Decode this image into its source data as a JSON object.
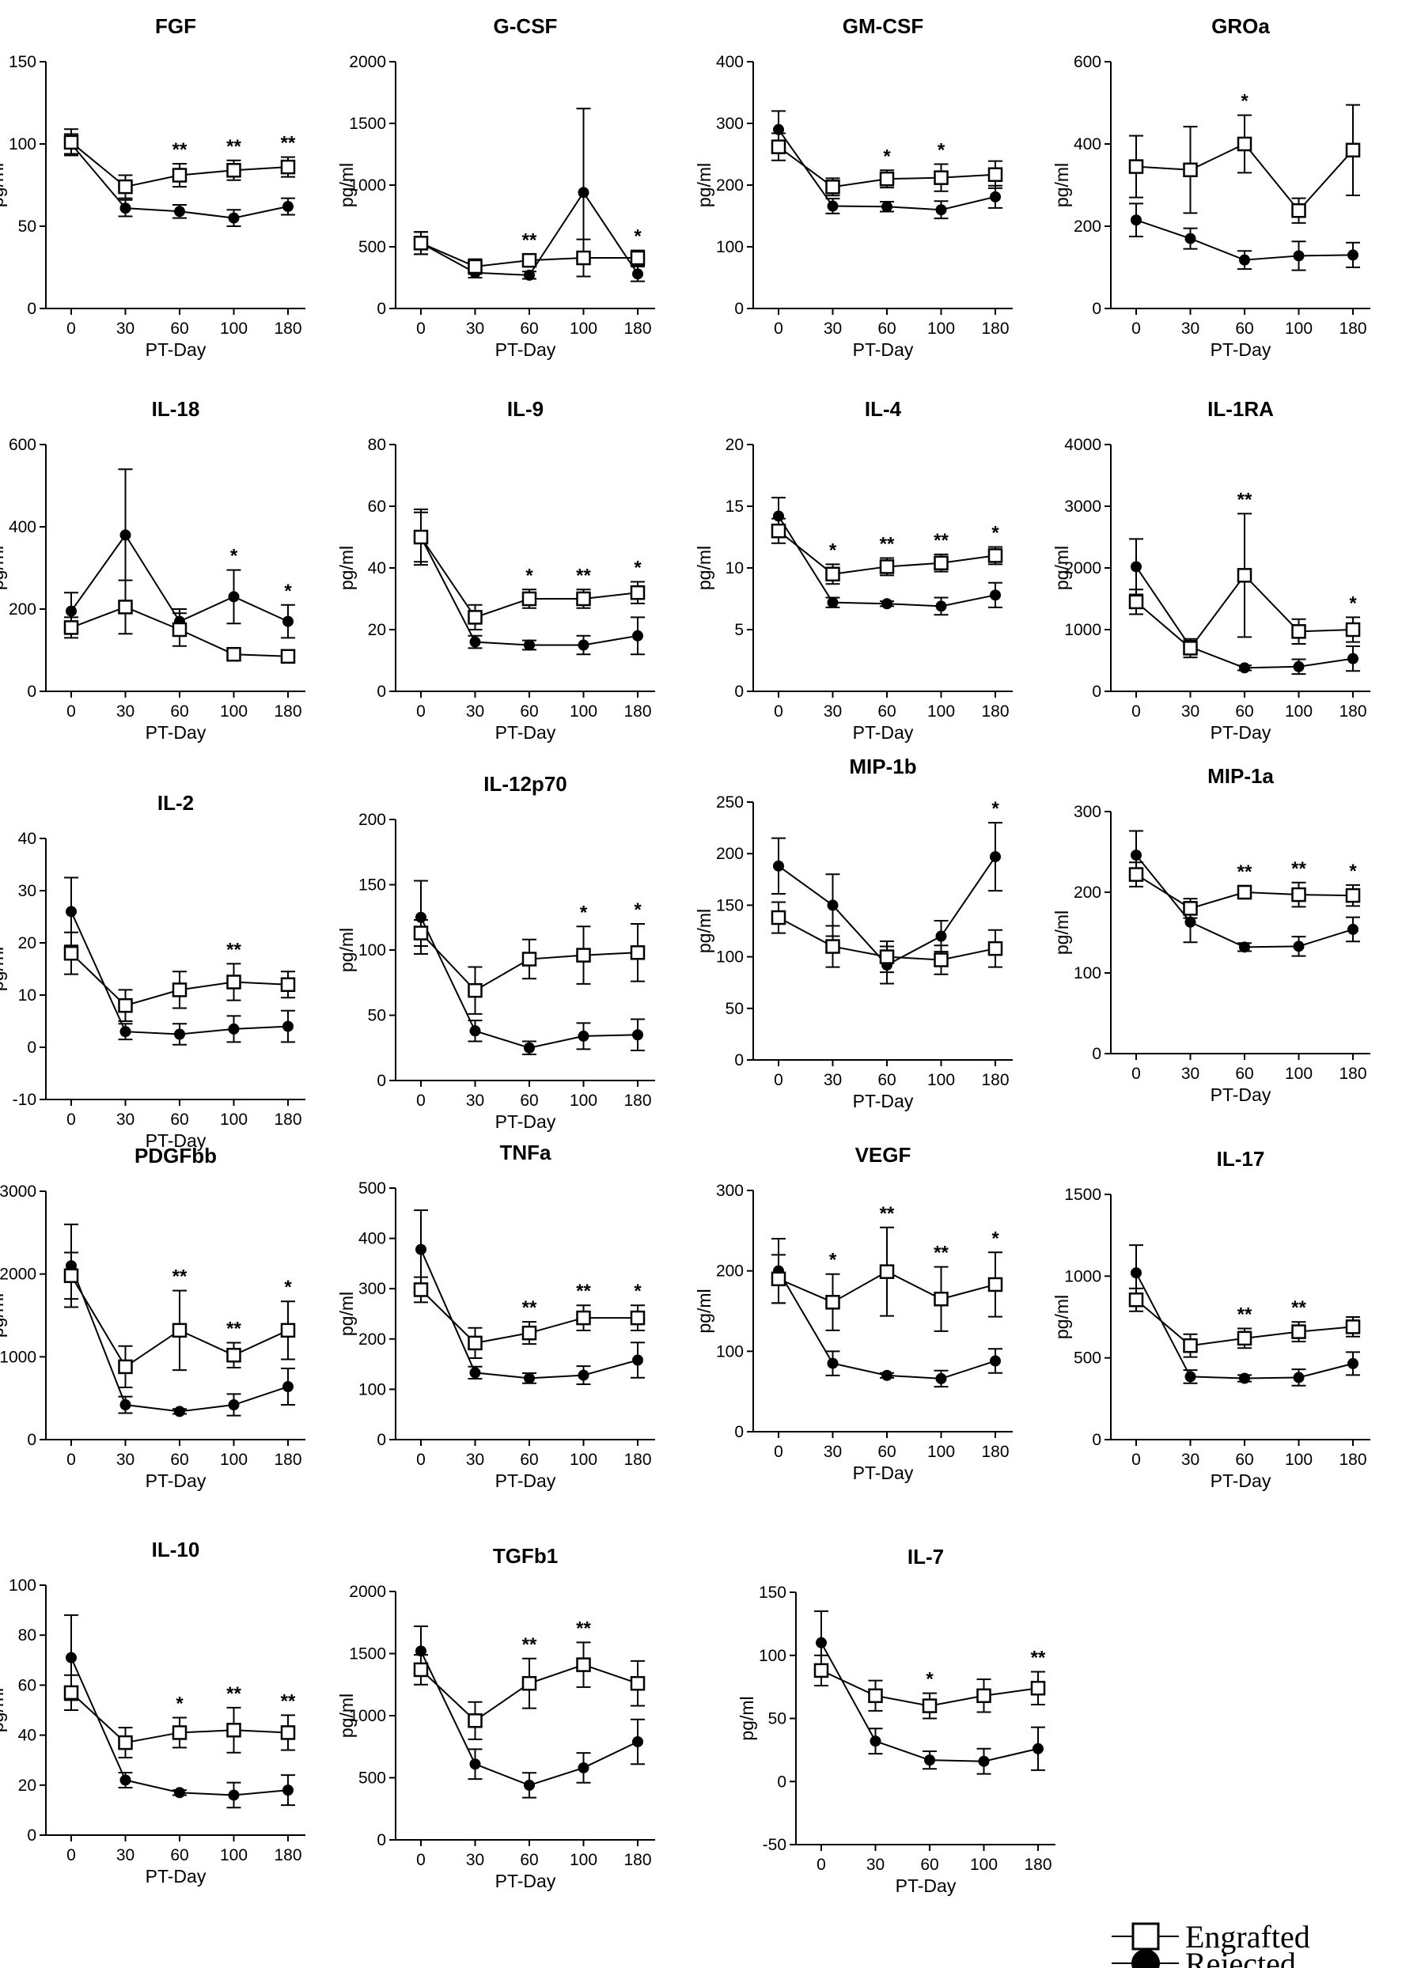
{
  "legend": {
    "engrafted": "Engrafted",
    "rejected": "Rejected"
  },
  "chart_data": [
    {
      "type": "line",
      "title": "FGF",
      "xlabel": "PT-Day",
      "ylabel": "pg/ml",
      "categories": [
        "0",
        "30",
        "60",
        "100",
        "180"
      ],
      "ylim": [
        0,
        150
      ],
      "yticks": [
        "0",
        "50",
        "100",
        "150"
      ],
      "series": [
        {
          "name": "Engrafted",
          "values": [
            101,
            74,
            81,
            84,
            86
          ],
          "errors": [
            8,
            7,
            7,
            6,
            6
          ]
        },
        {
          "name": "Rejected",
          "values": [
            100,
            61,
            59,
            55,
            62
          ],
          "errors": [
            6,
            5,
            4,
            5,
            5
          ]
        }
      ],
      "annotations": [
        "",
        "",
        "**",
        "**",
        "**"
      ]
    },
    {
      "type": "line",
      "title": "G-CSF",
      "xlabel": "PT-Day",
      "ylabel": "pg/ml",
      "categories": [
        "0",
        "30",
        "60",
        "100",
        "180"
      ],
      "ylim": [
        0,
        2000
      ],
      "yticks": [
        "0",
        "500",
        "1000",
        "1500",
        "2000"
      ],
      "series": [
        {
          "name": "Engrafted",
          "values": [
            530,
            340,
            390,
            410,
            410
          ],
          "errors": [
            90,
            60,
            50,
            150,
            60
          ]
        },
        {
          "name": "Rejected",
          "values": [
            530,
            290,
            270,
            940,
            280
          ],
          "errors": [
            90,
            40,
            30,
            680,
            60
          ]
        }
      ],
      "annotations": [
        "",
        "",
        "**",
        "",
        "*"
      ]
    },
    {
      "type": "line",
      "title": "GM-CSF",
      "xlabel": "PT-Day",
      "ylabel": "pg/ml",
      "categories": [
        "0",
        "30",
        "60",
        "100",
        "180"
      ],
      "ylim": [
        0,
        400
      ],
      "yticks": [
        "0",
        "100",
        "200",
        "300",
        "400"
      ],
      "series": [
        {
          "name": "Engrafted",
          "values": [
            262,
            197,
            210,
            212,
            217
          ],
          "errors": [
            22,
            14,
            14,
            22,
            22
          ]
        },
        {
          "name": "Rejected",
          "values": [
            290,
            166,
            165,
            160,
            181
          ],
          "errors": [
            30,
            12,
            8,
            14,
            18
          ]
        }
      ],
      "annotations": [
        "",
        "",
        "*",
        "*",
        ""
      ]
    },
    {
      "type": "line",
      "title": "GROa",
      "xlabel": "PT-Day",
      "ylabel": "pg/ml",
      "categories": [
        "0",
        "30",
        "60",
        "100",
        "180"
      ],
      "ylim": [
        0,
        600
      ],
      "yticks": [
        "0",
        "200",
        "400",
        "600"
      ],
      "series": [
        {
          "name": "Engrafted",
          "values": [
            345,
            337,
            400,
            238,
            385
          ],
          "errors": [
            75,
            105,
            70,
            30,
            110
          ]
        },
        {
          "name": "Rejected",
          "values": [
            215,
            170,
            118,
            128,
            130
          ],
          "errors": [
            40,
            25,
            22,
            35,
            30
          ]
        }
      ],
      "annotations": [
        "",
        "",
        "*",
        "",
        ""
      ]
    },
    {
      "type": "line",
      "title": "IL-18",
      "xlabel": "PT-Day",
      "ylabel": "pg/ml",
      "categories": [
        "0",
        "30",
        "60",
        "100",
        "180"
      ],
      "ylim": [
        0,
        600
      ],
      "yticks": [
        "0",
        "200",
        "400",
        "600"
      ],
      "series": [
        {
          "name": "Engrafted",
          "values": [
            155,
            205,
            150,
            90,
            85
          ],
          "errors": [
            25,
            65,
            40,
            15,
            10
          ]
        },
        {
          "name": "Rejected",
          "values": [
            195,
            380,
            170,
            230,
            170
          ],
          "errors": [
            45,
            160,
            30,
            65,
            40
          ]
        }
      ],
      "annotations": [
        "",
        "",
        "",
        "*",
        "*"
      ]
    },
    {
      "type": "line",
      "title": "IL-9",
      "xlabel": "PT-Day",
      "ylabel": "pg/ml",
      "categories": [
        "0",
        "30",
        "60",
        "100",
        "180"
      ],
      "ylim": [
        0,
        80
      ],
      "yticks": [
        "0",
        "20",
        "40",
        "60",
        "80"
      ],
      "series": [
        {
          "name": "Engrafted",
          "values": [
            50,
            24,
            30,
            30,
            32
          ],
          "errors": [
            9,
            4,
            3,
            3,
            3.5
          ]
        },
        {
          "name": "Rejected",
          "values": [
            50,
            16,
            15,
            15,
            18
          ],
          "errors": [
            8,
            2,
            1.5,
            3,
            6
          ]
        }
      ],
      "annotations": [
        "",
        "",
        "*",
        "**",
        "*"
      ]
    },
    {
      "type": "line",
      "title": "IL-4",
      "xlabel": "PT-Day",
      "ylabel": "pg/ml",
      "categories": [
        "0",
        "30",
        "60",
        "100",
        "180"
      ],
      "ylim": [
        0,
        20
      ],
      "yticks": [
        "0",
        "5",
        "10",
        "15",
        "20"
      ],
      "series": [
        {
          "name": "Engrafted",
          "values": [
            13,
            9.5,
            10.1,
            10.4,
            11
          ],
          "errors": [
            1,
            0.8,
            0.7,
            0.7,
            0.7
          ]
        },
        {
          "name": "Rejected",
          "values": [
            14.2,
            7.2,
            7.1,
            6.9,
            7.8
          ],
          "errors": [
            1.5,
            0.4,
            0.2,
            0.7,
            1
          ]
        }
      ],
      "annotations": [
        "",
        "*",
        "**",
        "**",
        "*"
      ]
    },
    {
      "type": "line",
      "title": "IL-1RA",
      "xlabel": "PT-Day",
      "ylabel": "pg/ml",
      "categories": [
        "0",
        "30",
        "60",
        "100",
        "180"
      ],
      "ylim": [
        0,
        4000
      ],
      "yticks": [
        "0",
        "1000",
        "2000",
        "3000",
        "4000"
      ],
      "series": [
        {
          "name": "Engrafted",
          "values": [
            1450,
            700,
            1880,
            970,
            1000
          ],
          "errors": [
            200,
            150,
            1000,
            200,
            200
          ]
        },
        {
          "name": "Rejected",
          "values": [
            2020,
            720,
            380,
            400,
            530
          ],
          "errors": [
            450,
            100,
            40,
            120,
            200
          ]
        }
      ],
      "annotations": [
        "",
        "",
        "**",
        "",
        "*"
      ]
    },
    {
      "type": "line",
      "title": "IL-2",
      "xlabel": "PT-Day",
      "ylabel": "pg/ml",
      "categories": [
        "0",
        "30",
        "60",
        "100",
        "180"
      ],
      "ylim": [
        -10,
        40
      ],
      "yticks": [
        "-10",
        "0",
        "10",
        "20",
        "30",
        "40"
      ],
      "series": [
        {
          "name": "Engrafted",
          "values": [
            18,
            8,
            11,
            12.5,
            12
          ],
          "errors": [
            4,
            3,
            3.5,
            3.5,
            2.5
          ]
        },
        {
          "name": "Rejected",
          "values": [
            26,
            3,
            2.5,
            3.5,
            4
          ],
          "errors": [
            6.5,
            1.5,
            2,
            2.5,
            3
          ]
        }
      ],
      "annotations": [
        "",
        "",
        "",
        "**",
        ""
      ]
    },
    {
      "type": "line",
      "title": "IL-12p70",
      "xlabel": "PT-Day",
      "ylabel": "pg/ml",
      "categories": [
        "0",
        "30",
        "60",
        "100",
        "180"
      ],
      "ylim": [
        0,
        200
      ],
      "yticks": [
        "0",
        "50",
        "100",
        "150",
        "200"
      ],
      "series": [
        {
          "name": "Engrafted",
          "values": [
            113,
            69,
            93,
            96,
            98
          ],
          "errors": [
            10,
            18,
            15,
            22,
            22
          ]
        },
        {
          "name": "Rejected",
          "values": [
            125,
            38,
            25,
            34,
            35
          ],
          "errors": [
            28,
            8,
            5,
            10,
            12
          ]
        }
      ],
      "annotations": [
        "",
        "",
        "",
        "*",
        "*"
      ]
    },
    {
      "type": "line",
      "title": "MIP-1b",
      "xlabel": "PT-Day",
      "ylabel": "pg/ml",
      "categories": [
        "0",
        "30",
        "60",
        "100",
        "180"
      ],
      "ylim": [
        0,
        250
      ],
      "yticks": [
        "0",
        "50",
        "100",
        "150",
        "200",
        "250"
      ],
      "series": [
        {
          "name": "Engrafted",
          "values": [
            138,
            110,
            100,
            97,
            108
          ],
          "errors": [
            15,
            20,
            15,
            14,
            18
          ]
        },
        {
          "name": "Rejected",
          "values": [
            188,
            150,
            92,
            120,
            197
          ],
          "errors": [
            27,
            30,
            18,
            15,
            33
          ]
        }
      ],
      "annotations": [
        "",
        "",
        "",
        "",
        "*"
      ]
    },
    {
      "type": "line",
      "title": "MIP-1a",
      "xlabel": "PT-Day",
      "ylabel": "pg/ml",
      "categories": [
        "0",
        "30",
        "60",
        "100",
        "180"
      ],
      "ylim": [
        0,
        300
      ],
      "yticks": [
        "0",
        "100",
        "200",
        "300"
      ],
      "series": [
        {
          "name": "Engrafted",
          "values": [
            222,
            180,
            200,
            197,
            196
          ],
          "errors": [
            15,
            12,
            8,
            15,
            13
          ]
        },
        {
          "name": "Rejected",
          "values": [
            246,
            163,
            132,
            133,
            154
          ],
          "errors": [
            30,
            25,
            5,
            12,
            15
          ]
        }
      ],
      "annotations": [
        "",
        "",
        "**",
        "**",
        "*"
      ]
    },
    {
      "type": "line",
      "title": "PDGFbb",
      "xlabel": "PT-Day",
      "ylabel": "pg/ml",
      "categories": [
        "0",
        "30",
        "60",
        "100",
        "180"
      ],
      "ylim": [
        0,
        3000
      ],
      "yticks": [
        "0",
        "1000",
        "2000",
        "3000"
      ],
      "series": [
        {
          "name": "Engrafted",
          "values": [
            1980,
            880,
            1320,
            1020,
            1320
          ],
          "errors": [
            280,
            250,
            480,
            150,
            350
          ]
        },
        {
          "name": "Rejected",
          "values": [
            2100,
            420,
            340,
            420,
            640
          ],
          "errors": [
            500,
            100,
            30,
            130,
            220
          ]
        }
      ],
      "annotations": [
        "",
        "",
        "**",
        "**",
        "*"
      ]
    },
    {
      "type": "line",
      "title": "TNFa",
      "xlabel": "PT-Day",
      "ylabel": "pg/ml",
      "categories": [
        "0",
        "30",
        "60",
        "100",
        "180"
      ],
      "ylim": [
        0,
        500
      ],
      "yticks": [
        "0",
        "100",
        "200",
        "300",
        "400",
        "500"
      ],
      "series": [
        {
          "name": "Engrafted",
          "values": [
            298,
            192,
            212,
            242,
            242
          ],
          "errors": [
            25,
            30,
            22,
            25,
            25
          ]
        },
        {
          "name": "Rejected",
          "values": [
            378,
            133,
            122,
            128,
            158
          ],
          "errors": [
            78,
            12,
            10,
            18,
            35
          ]
        }
      ],
      "annotations": [
        "",
        "",
        "**",
        "**",
        "*"
      ]
    },
    {
      "type": "line",
      "title": "VEGF",
      "xlabel": "PT-Day",
      "ylabel": "pg/ml",
      "categories": [
        "0",
        "30",
        "60",
        "100",
        "180"
      ],
      "ylim": [
        0,
        300
      ],
      "yticks": [
        "0",
        "100",
        "200",
        "300"
      ],
      "series": [
        {
          "name": "Engrafted",
          "values": [
            190,
            161,
            199,
            165,
            183
          ],
          "errors": [
            30,
            35,
            55,
            40,
            40
          ]
        },
        {
          "name": "Rejected",
          "values": [
            200,
            85,
            70,
            66,
            88
          ],
          "errors": [
            40,
            15,
            3,
            10,
            15
          ]
        }
      ],
      "annotations": [
        "",
        "*",
        "**",
        "**",
        "*"
      ]
    },
    {
      "type": "line",
      "title": "IL-17",
      "xlabel": "PT-Day",
      "ylabel": "pg/ml",
      "categories": [
        "0",
        "30",
        "60",
        "100",
        "180"
      ],
      "ylim": [
        0,
        1500
      ],
      "yticks": [
        "0",
        "500",
        "1000",
        "1500"
      ],
      "series": [
        {
          "name": "Engrafted",
          "values": [
            855,
            575,
            620,
            660,
            690
          ],
          "errors": [
            70,
            70,
            60,
            60,
            60
          ]
        },
        {
          "name": "Rejected",
          "values": [
            1020,
            385,
            375,
            380,
            465
          ],
          "errors": [
            170,
            40,
            20,
            50,
            70
          ]
        }
      ],
      "annotations": [
        "",
        "",
        "**",
        "**",
        ""
      ]
    },
    {
      "type": "line",
      "title": "IL-10",
      "xlabel": "PT-Day",
      "ylabel": "pg/ml",
      "categories": [
        "0",
        "30",
        "60",
        "100",
        "180"
      ],
      "ylim": [
        0,
        100
      ],
      "yticks": [
        "0",
        "20",
        "40",
        "60",
        "80",
        "100"
      ],
      "series": [
        {
          "name": "Engrafted",
          "values": [
            57,
            37,
            41,
            42,
            41
          ],
          "errors": [
            7,
            6,
            6,
            9,
            7
          ]
        },
        {
          "name": "Rejected",
          "values": [
            71,
            22,
            17,
            16,
            18
          ],
          "errors": [
            17,
            3,
            1,
            5,
            6
          ]
        }
      ],
      "annotations": [
        "",
        "",
        "*",
        "**",
        "**"
      ]
    },
    {
      "type": "line",
      "title": "TGFb1",
      "xlabel": "PT-Day",
      "ylabel": "pg/ml",
      "categories": [
        "0",
        "30",
        "60",
        "100",
        "180"
      ],
      "ylim": [
        0,
        2000
      ],
      "yticks": [
        "0",
        "500",
        "1000",
        "1500",
        "2000"
      ],
      "series": [
        {
          "name": "Engrafted",
          "values": [
            1370,
            960,
            1260,
            1410,
            1260
          ],
          "errors": [
            120,
            150,
            200,
            180,
            180
          ]
        },
        {
          "name": "Rejected",
          "values": [
            1520,
            610,
            440,
            580,
            790
          ],
          "errors": [
            200,
            120,
            100,
            120,
            180
          ]
        }
      ],
      "annotations": [
        "",
        "",
        "**",
        "**",
        ""
      ]
    },
    {
      "type": "line",
      "title": "IL-7",
      "xlabel": "PT-Day",
      "ylabel": "pg/ml",
      "categories": [
        "0",
        "30",
        "60",
        "100",
        "180"
      ],
      "ylim": [
        -50,
        150
      ],
      "yticks": [
        "-50",
        "0",
        "50",
        "100",
        "150"
      ],
      "series": [
        {
          "name": "Engrafted",
          "values": [
            88,
            68,
            60,
            68,
            74
          ],
          "errors": [
            12,
            12,
            10,
            13,
            13
          ]
        },
        {
          "name": "Rejected",
          "values": [
            110,
            32,
            17,
            16,
            26
          ],
          "errors": [
            25,
            10,
            7,
            10,
            17
          ]
        }
      ],
      "annotations": [
        "",
        "",
        "*",
        "",
        "**"
      ]
    }
  ]
}
